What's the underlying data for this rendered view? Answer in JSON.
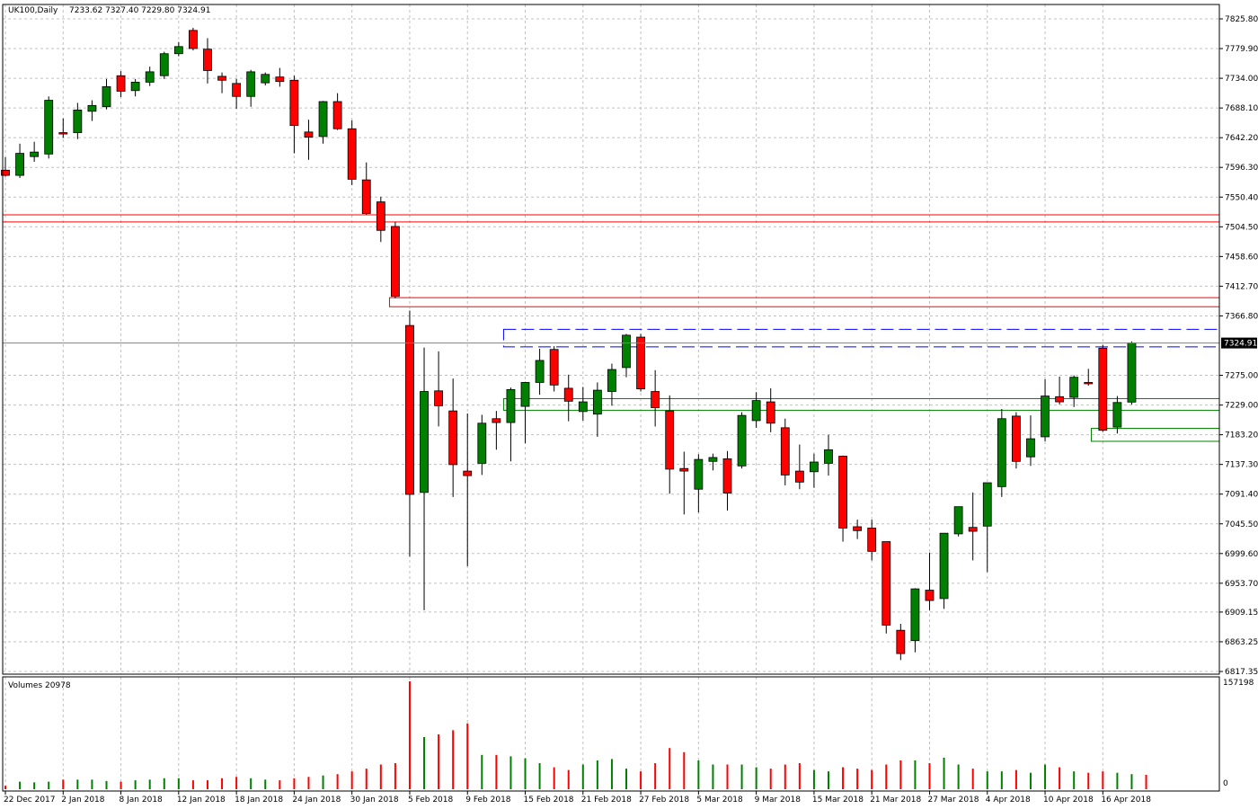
{
  "header": {
    "symbol": "UK100,Daily",
    "ohlc": "7233.62 7327.40 7229.80 7324.91"
  },
  "volume_header": "Volumes 20978",
  "colors": {
    "bull": "#008000",
    "bear": "#ff0000",
    "grid": "#c0c0c0",
    "resistance_zone": "#ff0000",
    "consolidation_zone": "#0000ff",
    "support_zone": "#008000",
    "price_tag_bg": "#000000",
    "price_tag_fg": "#ffffff"
  },
  "chart_data": [
    {
      "type": "candlestick",
      "title": "UK100,Daily",
      "ylim": [
        6817.35,
        7845
      ],
      "y_ticks": [
        "7825.80",
        "7779.90",
        "7734.00",
        "7688.10",
        "7642.20",
        "7596.30",
        "7550.40",
        "7504.50",
        "7458.60",
        "7412.70",
        "7366.80",
        "7275.00",
        "7229.00",
        "7183.20",
        "7137.30",
        "7091.40",
        "7045.50",
        "6999.60",
        "6953.70",
        "6909.15",
        "6863.25",
        "6817.35"
      ],
      "current_price_label": "7324.91",
      "current_price": 7324.91,
      "x_labels": [
        {
          "i": 0,
          "label": "22 Dec 2017"
        },
        {
          "i": 4,
          "label": "2 Jan 2018"
        },
        {
          "i": 8,
          "label": "8 Jan 2018"
        },
        {
          "i": 12,
          "label": "12 Jan 2018"
        },
        {
          "i": 16,
          "label": "18 Jan 2018"
        },
        {
          "i": 20,
          "label": "24 Jan 2018"
        },
        {
          "i": 24,
          "label": "30 Jan 2018"
        },
        {
          "i": 28,
          "label": "5 Feb 2018"
        },
        {
          "i": 32,
          "label": "9 Feb 2018"
        },
        {
          "i": 36,
          "label": "15 Feb 2018"
        },
        {
          "i": 40,
          "label": "21 Feb 2018"
        },
        {
          "i": 44,
          "label": "27 Feb 2018"
        },
        {
          "i": 48,
          "label": "5 Mar 2018"
        },
        {
          "i": 52,
          "label": "9 Mar 2018"
        },
        {
          "i": 56,
          "label": "15 Mar 2018"
        },
        {
          "i": 60,
          "label": "21 Mar 2018"
        },
        {
          "i": 64,
          "label": "27 Mar 2018"
        },
        {
          "i": 68,
          "label": "4 Apr 2018"
        },
        {
          "i": 72,
          "label": "10 Apr 2018"
        },
        {
          "i": 76,
          "label": "16 Apr 2018"
        }
      ],
      "series": [
        {
          "o": 7592,
          "h": 7612,
          "l": 7582,
          "c": 7584
        },
        {
          "o": 7584,
          "h": 7633,
          "l": 7580,
          "c": 7618
        },
        {
          "o": 7613,
          "h": 7636,
          "l": 7605,
          "c": 7620
        },
        {
          "o": 7617,
          "h": 7706,
          "l": 7610,
          "c": 7700
        },
        {
          "o": 7650,
          "h": 7672,
          "l": 7642,
          "c": 7648
        },
        {
          "o": 7650,
          "h": 7696,
          "l": 7640,
          "c": 7685
        },
        {
          "o": 7683,
          "h": 7700,
          "l": 7668,
          "c": 7692
        },
        {
          "o": 7690,
          "h": 7733,
          "l": 7686,
          "c": 7721
        },
        {
          "o": 7738,
          "h": 7745,
          "l": 7705,
          "c": 7714
        },
        {
          "o": 7715,
          "h": 7733,
          "l": 7706,
          "c": 7728
        },
        {
          "o": 7728,
          "h": 7752,
          "l": 7722,
          "c": 7744
        },
        {
          "o": 7738,
          "h": 7775,
          "l": 7733,
          "c": 7772
        },
        {
          "o": 7772,
          "h": 7790,
          "l": 7768,
          "c": 7783
        },
        {
          "o": 7808,
          "h": 7812,
          "l": 7777,
          "c": 7780
        },
        {
          "o": 7779,
          "h": 7796,
          "l": 7726,
          "c": 7746
        },
        {
          "o": 7737,
          "h": 7743,
          "l": 7711,
          "c": 7731
        },
        {
          "o": 7726,
          "h": 7733,
          "l": 7687,
          "c": 7706
        },
        {
          "o": 7706,
          "h": 7747,
          "l": 7690,
          "c": 7744
        },
        {
          "o": 7727,
          "h": 7743,
          "l": 7723,
          "c": 7740
        },
        {
          "o": 7736,
          "h": 7750,
          "l": 7721,
          "c": 7729
        },
        {
          "o": 7731,
          "h": 7738,
          "l": 7618,
          "c": 7661
        },
        {
          "o": 7651,
          "h": 7670,
          "l": 7608,
          "c": 7643
        },
        {
          "o": 7644,
          "h": 7699,
          "l": 7633,
          "c": 7698
        },
        {
          "o": 7698,
          "h": 7711,
          "l": 7654,
          "c": 7656
        },
        {
          "o": 7656,
          "h": 7669,
          "l": 7569,
          "c": 7578
        },
        {
          "o": 7577,
          "h": 7604,
          "l": 7523,
          "c": 7525
        },
        {
          "o": 7543,
          "h": 7551,
          "l": 7481,
          "c": 7499
        },
        {
          "o": 7505,
          "h": 7512,
          "l": 7394,
          "c": 7397
        },
        {
          "o": 7352,
          "h": 7375,
          "l": 6995,
          "c": 7091
        },
        {
          "o": 7094,
          "h": 7318,
          "l": 6912,
          "c": 7250
        },
        {
          "o": 7251,
          "h": 7312,
          "l": 7196,
          "c": 7228
        },
        {
          "o": 7220,
          "h": 7270,
          "l": 7087,
          "c": 7137
        },
        {
          "o": 7127,
          "h": 7216,
          "l": 6980,
          "c": 7120
        },
        {
          "o": 7139,
          "h": 7214,
          "l": 7121,
          "c": 7201
        },
        {
          "o": 7208,
          "h": 7220,
          "l": 7160,
          "c": 7202
        },
        {
          "o": 7202,
          "h": 7256,
          "l": 7142,
          "c": 7253
        },
        {
          "o": 7227,
          "h": 7265,
          "l": 7170,
          "c": 7264
        },
        {
          "o": 7264,
          "h": 7316,
          "l": 7245,
          "c": 7298
        },
        {
          "o": 7315,
          "h": 7320,
          "l": 7250,
          "c": 7260
        },
        {
          "o": 7255,
          "h": 7276,
          "l": 7204,
          "c": 7235
        },
        {
          "o": 7219,
          "h": 7257,
          "l": 7205,
          "c": 7234
        },
        {
          "o": 7215,
          "h": 7264,
          "l": 7180,
          "c": 7252
        },
        {
          "o": 7250,
          "h": 7293,
          "l": 7228,
          "c": 7284
        },
        {
          "o": 7287,
          "h": 7339,
          "l": 7272,
          "c": 7337
        },
        {
          "o": 7334,
          "h": 7339,
          "l": 7250,
          "c": 7254
        },
        {
          "o": 7250,
          "h": 7283,
          "l": 7196,
          "c": 7225
        },
        {
          "o": 7220,
          "h": 7244,
          "l": 7092,
          "c": 7130
        },
        {
          "o": 7131,
          "h": 7157,
          "l": 7060,
          "c": 7127
        },
        {
          "o": 7099,
          "h": 7153,
          "l": 7063,
          "c": 7145
        },
        {
          "o": 7142,
          "h": 7154,
          "l": 7128,
          "c": 7148
        },
        {
          "o": 7146,
          "h": 7158,
          "l": 7066,
          "c": 7093
        },
        {
          "o": 7135,
          "h": 7218,
          "l": 7131,
          "c": 7213
        },
        {
          "o": 7205,
          "h": 7249,
          "l": 7194,
          "c": 7236
        },
        {
          "o": 7234,
          "h": 7255,
          "l": 7187,
          "c": 7201
        },
        {
          "o": 7194,
          "h": 7208,
          "l": 7105,
          "c": 7121
        },
        {
          "o": 7127,
          "h": 7168,
          "l": 7099,
          "c": 7110
        },
        {
          "o": 7126,
          "h": 7154,
          "l": 7101,
          "c": 7141
        },
        {
          "o": 7139,
          "h": 7183,
          "l": 7120,
          "c": 7160
        },
        {
          "o": 7150,
          "h": 7151,
          "l": 7018,
          "c": 7039
        },
        {
          "o": 7041,
          "h": 7052,
          "l": 7022,
          "c": 7035
        },
        {
          "o": 7039,
          "h": 7052,
          "l": 6989,
          "c": 7003
        },
        {
          "o": 7018,
          "h": 7018,
          "l": 6876,
          "c": 6889
        },
        {
          "o": 6881,
          "h": 6891,
          "l": 6835,
          "c": 6845
        },
        {
          "o": 6865,
          "h": 6946,
          "l": 6847,
          "c": 6945
        },
        {
          "o": 6943,
          "h": 7001,
          "l": 6912,
          "c": 6927
        },
        {
          "o": 6930,
          "h": 7030,
          "l": 6914,
          "c": 7031
        },
        {
          "o": 7030,
          "h": 7067,
          "l": 7026,
          "c": 7072
        },
        {
          "o": 7040,
          "h": 7094,
          "l": 6989,
          "c": 7034
        },
        {
          "o": 7042,
          "h": 7108,
          "l": 6971,
          "c": 7109
        },
        {
          "o": 7103,
          "h": 7223,
          "l": 7087,
          "c": 7208
        },
        {
          "o": 7212,
          "h": 7218,
          "l": 7131,
          "c": 7142
        },
        {
          "o": 7149,
          "h": 7213,
          "l": 7135,
          "c": 7177
        },
        {
          "o": 7180,
          "h": 7269,
          "l": 7173,
          "c": 7243
        },
        {
          "o": 7242,
          "h": 7273,
          "l": 7230,
          "c": 7234
        },
        {
          "o": 7241,
          "h": 7275,
          "l": 7226,
          "c": 7272
        },
        {
          "o": 7264,
          "h": 7285,
          "l": 7259,
          "c": 7263
        },
        {
          "o": 7317,
          "h": 7322,
          "l": 7188,
          "c": 7190
        },
        {
          "o": 7195,
          "h": 7243,
          "l": 7185,
          "c": 7233
        },
        {
          "o": 7233.62,
          "h": 7327.4,
          "l": 7229.8,
          "c": 7324.91
        }
      ],
      "zones": [
        {
          "kind": "resistance",
          "x0": -1,
          "x1": 99,
          "y0": 7512,
          "y1": 7523
        },
        {
          "kind": "resistance",
          "x0": 26.6,
          "x1": 99,
          "y0": 7381,
          "y1": 7395
        },
        {
          "kind": "consolidation",
          "x0": 34.5,
          "x1": 99,
          "y0": 7319,
          "y1": 7346
        },
        {
          "kind": "support",
          "x0": 34.5,
          "x1": 99,
          "y0": 7221,
          "y1": 7239
        },
        {
          "kind": "support",
          "x0": 75.2,
          "x1": 99,
          "y0": 7173,
          "y1": 7193
        }
      ]
    },
    {
      "type": "bar",
      "title": "Volumes 20978",
      "ylim": [
        0,
        157198
      ],
      "y_ticks": [
        "157198",
        "0"
      ],
      "values": [
        5000,
        11000,
        10000,
        11000,
        14000,
        14000,
        14000,
        12000,
        11000,
        13000,
        14000,
        16000,
        16000,
        13000,
        13000,
        16000,
        18000,
        16000,
        14000,
        13000,
        16000,
        18000,
        20000,
        22000,
        26000,
        30000,
        36000,
        38000,
        157198,
        76000,
        80000,
        86000,
        96000,
        50000,
        50000,
        48000,
        45000,
        38000,
        32000,
        28000,
        36000,
        42000,
        44000,
        30000,
        26000,
        38000,
        60000,
        54000,
        42000,
        36000,
        36000,
        36000,
        32000,
        30000,
        36000,
        38000,
        28000,
        26000,
        32000,
        30000,
        28000,
        36000,
        42000,
        42000,
        38000,
        46000,
        36000,
        30000,
        26000,
        26000,
        28000,
        24000,
        36000,
        32000,
        26000,
        24000,
        26000,
        24000,
        22000,
        20978
      ],
      "colors_by": "candle-direction"
    }
  ]
}
